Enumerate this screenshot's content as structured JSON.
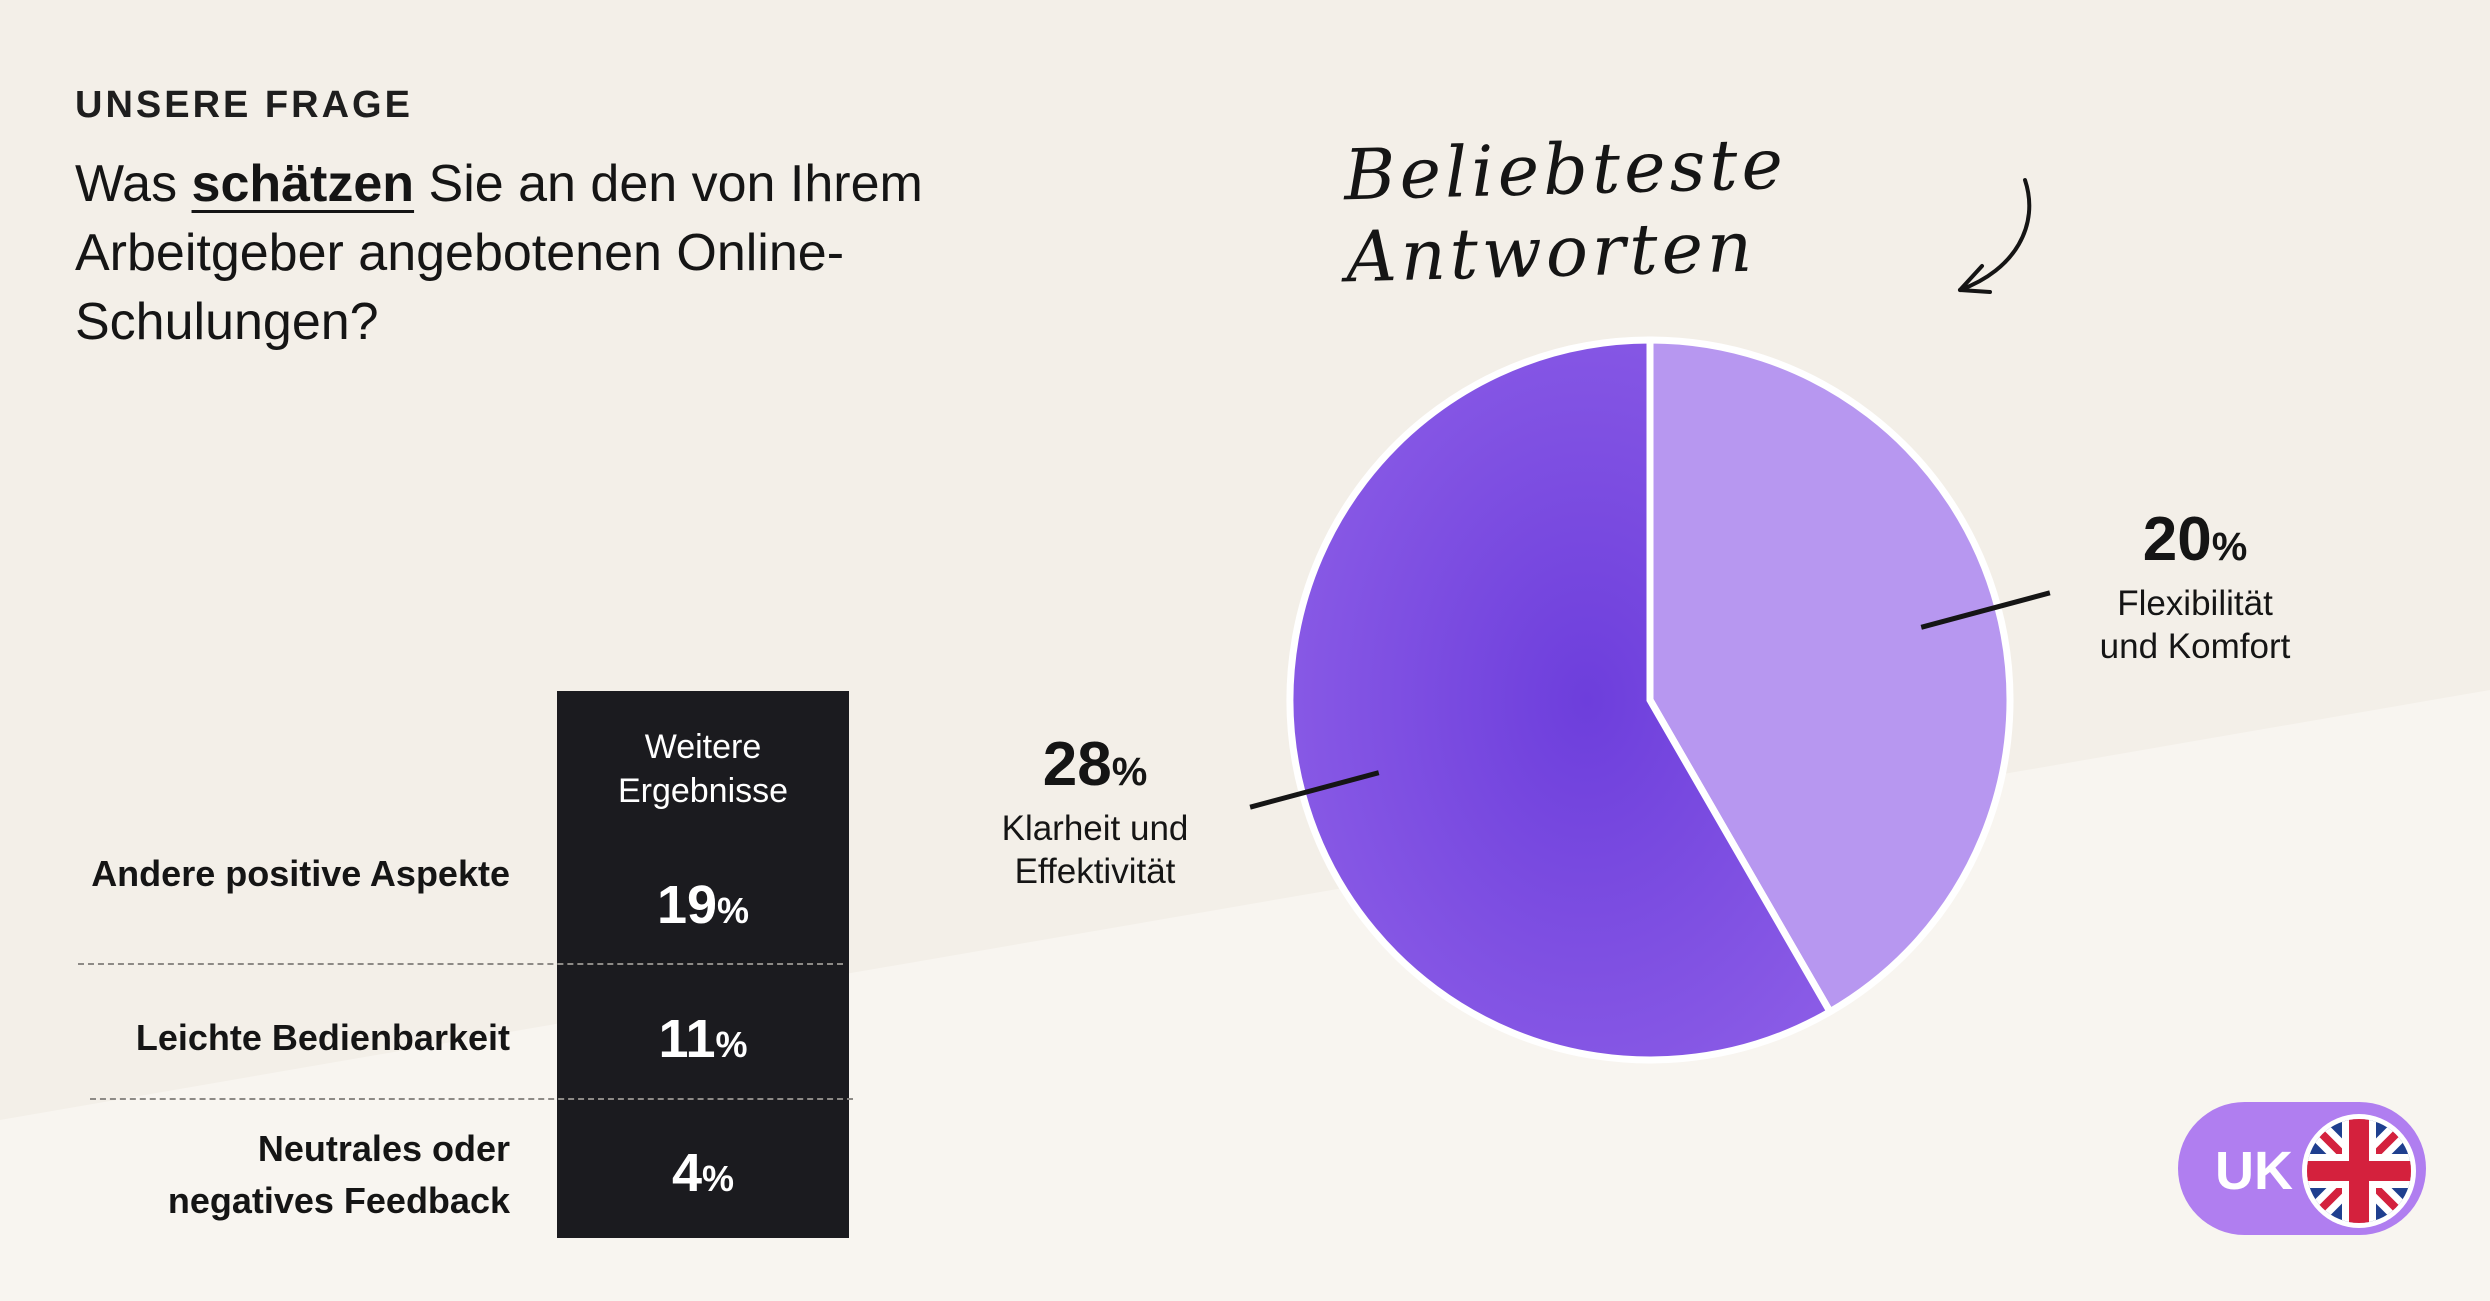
{
  "heading": {
    "eyebrow": "UNSERE FRAGE",
    "question_pre": "Was ",
    "question_highlight": "schätzen",
    "question_post": " Sie an den von Ihrem Arbeitgeber angebotenen Online-Schulungen?"
  },
  "annotation": "Beliebteste Antworten",
  "colors": {
    "background": "#f3efe8",
    "slice_dark": "#7b4de3",
    "slice_light": "#b797f0",
    "table_bg": "#1b1b1f",
    "badge": "#b07ef0"
  },
  "chart_data": [
    {
      "type": "pie",
      "title": "Beliebteste Antworten",
      "slices": [
        {
          "value": 20,
          "unit": "%",
          "label": "Flexibilität und Komfort",
          "label_lines": [
            "Flexibilität",
            "und Komfort"
          ],
          "color": "#b797f0"
        },
        {
          "value": 28,
          "unit": "%",
          "label": "Klarheit und Effektivität",
          "label_lines": [
            "Klarheit und",
            "Effektivität"
          ],
          "color": "#7b4de3"
        }
      ]
    },
    {
      "type": "table",
      "title": "Weitere Ergebnisse",
      "title_lines": [
        "Weitere",
        "Ergebnisse"
      ],
      "rows": [
        {
          "label": "Andere positive Aspekte",
          "value": 19,
          "unit": "%"
        },
        {
          "label": "Leichte Bedienbarkeit",
          "value": 11,
          "unit": "%"
        },
        {
          "label": "Neutrales oder negatives Feedback",
          "label_lines": [
            "Neutrales oder",
            "negatives Feedback"
          ],
          "value": 4,
          "unit": "%"
        }
      ]
    }
  ],
  "badge": {
    "text": "UK",
    "icon": "uk-flag-icon"
  }
}
